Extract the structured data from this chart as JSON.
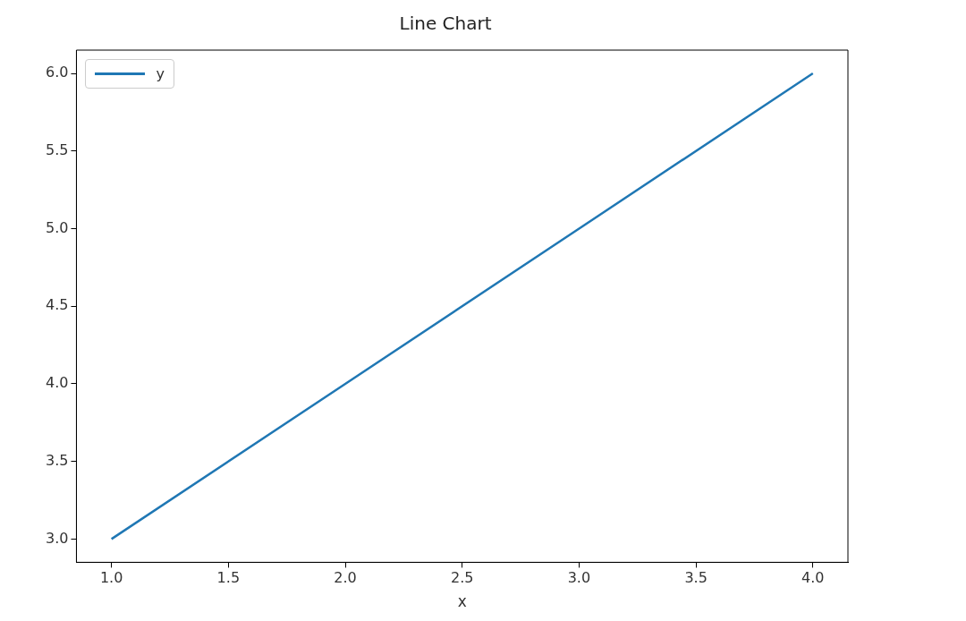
{
  "chart_data": {
    "type": "line",
    "title": "Line Chart",
    "xlabel": "x",
    "x": [
      1,
      2,
      3,
      4
    ],
    "series": [
      {
        "name": "y",
        "color": "#1f77b4",
        "values": [
          3,
          4,
          5,
          6
        ]
      }
    ],
    "xlim": [
      0.85,
      4.15
    ],
    "xticks": [
      {
        "value": 1,
        "label": "1.0"
      },
      {
        "value": 1.5,
        "label": "1.5"
      },
      {
        "value": 2,
        "label": "2.0"
      },
      {
        "value": 2.5,
        "label": "2.5"
      },
      {
        "value": 3,
        "label": "3.0"
      },
      {
        "value": 3.5,
        "label": "3.5"
      },
      {
        "value": 4,
        "label": "4.0"
      }
    ],
    "ylim": [
      2.85,
      6.15
    ],
    "yticks": [
      {
        "value": 3,
        "label": "3.0"
      },
      {
        "value": 3.5,
        "label": "3.5"
      },
      {
        "value": 4,
        "label": "4.0"
      },
      {
        "value": 4.5,
        "label": "4.5"
      },
      {
        "value": 5,
        "label": "5.0"
      },
      {
        "value": 5.5,
        "label": "5.5"
      },
      {
        "value": 6,
        "label": "6.0"
      }
    ],
    "grid": false,
    "legend": "top left",
    "marker": "none",
    "line_style": "solid"
  }
}
